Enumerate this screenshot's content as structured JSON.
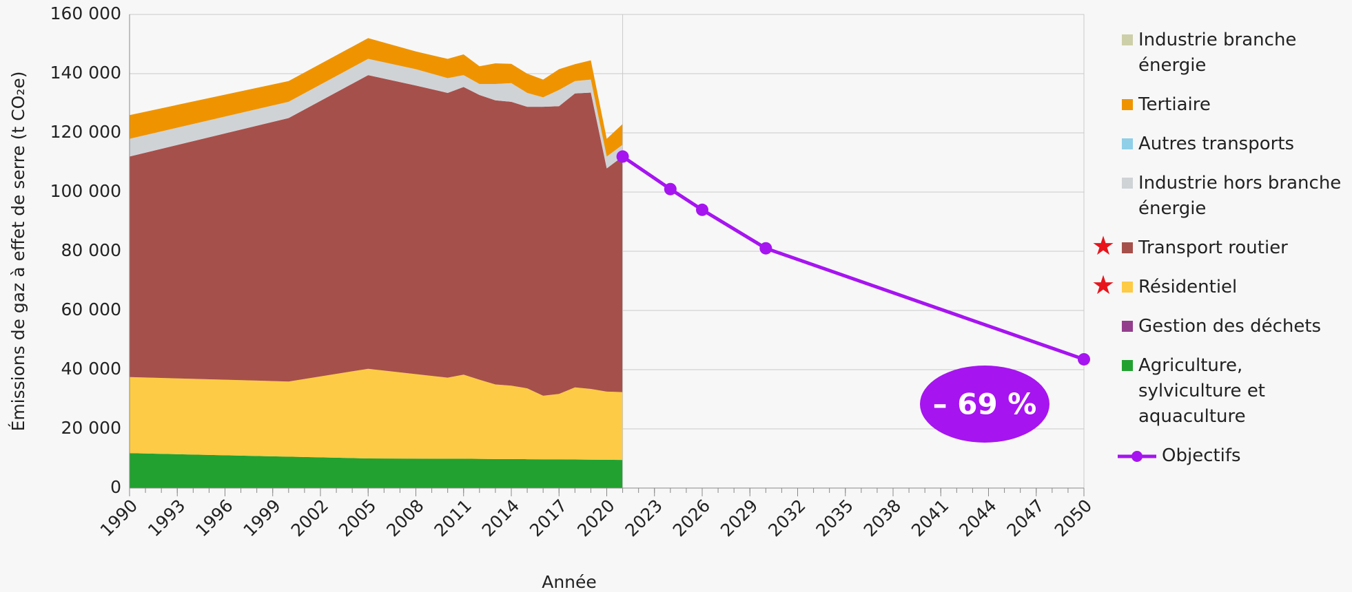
{
  "chart_data": {
    "type": "stacked_area",
    "ylabel": "Émissions de gaz à effet de serre (t CO₂e)",
    "xlabel": "Année",
    "annotation": "– 69 %",
    "x": [
      1990,
      2000,
      2005,
      2008,
      2010,
      2011,
      2012,
      2013,
      2014,
      2015,
      2016,
      2017,
      2018,
      2019,
      2020,
      2021
    ],
    "series": [
      {
        "name": "Agriculture, sylviculture et aquaculture",
        "color": "#22a130",
        "values": [
          11800,
          10600,
          10000,
          9950,
          9900,
          9900,
          9850,
          9800,
          9800,
          9750,
          9700,
          9700,
          9650,
          9600,
          9550,
          9500
        ]
      },
      {
        "name": "Gestion des déchets",
        "color": "#943e8e",
        "values": [
          0,
          0,
          0,
          0,
          0,
          0,
          0,
          0,
          0,
          0,
          0,
          0,
          0,
          0,
          0,
          0
        ]
      },
      {
        "name": "Résidentiel",
        "color": "#fdcb45",
        "values": [
          25700,
          25400,
          30300,
          28550,
          27400,
          28400,
          26750,
          25200,
          24800,
          23950,
          21500,
          22100,
          24350,
          23900,
          23050,
          22900
        ]
      },
      {
        "name": "Transport routier",
        "color": "#a6504b",
        "values": [
          74500,
          89000,
          99200,
          97500,
          96200,
          97200,
          96200,
          96000,
          95900,
          95100,
          97600,
          97200,
          99300,
          100100,
          75400,
          79600
        ]
      },
      {
        "name": "Industrie hors branche énergie",
        "color": "#cfd3d6",
        "values": [
          6000,
          5500,
          5500,
          5500,
          5000,
          4000,
          3700,
          5500,
          6300,
          4700,
          3200,
          5500,
          4200,
          4400,
          4000,
          4000
        ]
      },
      {
        "name": "Autres transports",
        "color": "#8fcfe8",
        "values": [
          0,
          0,
          0,
          0,
          0,
          0,
          0,
          0,
          0,
          0,
          0,
          0,
          0,
          0,
          0,
          0
        ]
      },
      {
        "name": "Tertiaire",
        "color": "#ef9400",
        "values": [
          8000,
          7000,
          7000,
          6000,
          6500,
          7000,
          6000,
          7000,
          6500,
          6500,
          6000,
          7000,
          5700,
          6500,
          6000,
          7000
        ]
      },
      {
        "name": "Industrie branche énergie",
        "color": "#cdcfa8",
        "values": [
          0,
          0,
          0,
          0,
          0,
          0,
          0,
          0,
          0,
          0,
          0,
          0,
          0,
          0,
          0,
          0
        ]
      }
    ],
    "objectives": {
      "name": "Objectifs",
      "color": "#a614f0",
      "x": [
        2021,
        2024,
        2026,
        2030,
        2050
      ],
      "values": [
        112000,
        101000,
        94000,
        81000,
        43500
      ]
    },
    "xlim": [
      1990,
      2050
    ],
    "xticks": [
      1990,
      1993,
      1996,
      1999,
      2002,
      2005,
      2008,
      2011,
      2014,
      2017,
      2020,
      2023,
      2026,
      2029,
      2032,
      2035,
      2038,
      2041,
      2044,
      2047,
      2050
    ],
    "ylim": [
      0,
      160000
    ],
    "yticks": [
      0,
      {
        "value": 20000,
        "label": "20 000"
      },
      {
        "value": 40000,
        "label": "40 000"
      },
      {
        "value": 60000,
        "label": "60 000"
      },
      {
        "value": 80000,
        "label": "80 000"
      },
      {
        "value": 100000,
        "label": "100 000"
      },
      {
        "value": 120000,
        "label": "120 000"
      },
      {
        "value": 140000,
        "label": "140 000"
      },
      {
        "value": 160000,
        "label": "160 000"
      }
    ],
    "grid": true
  }
}
